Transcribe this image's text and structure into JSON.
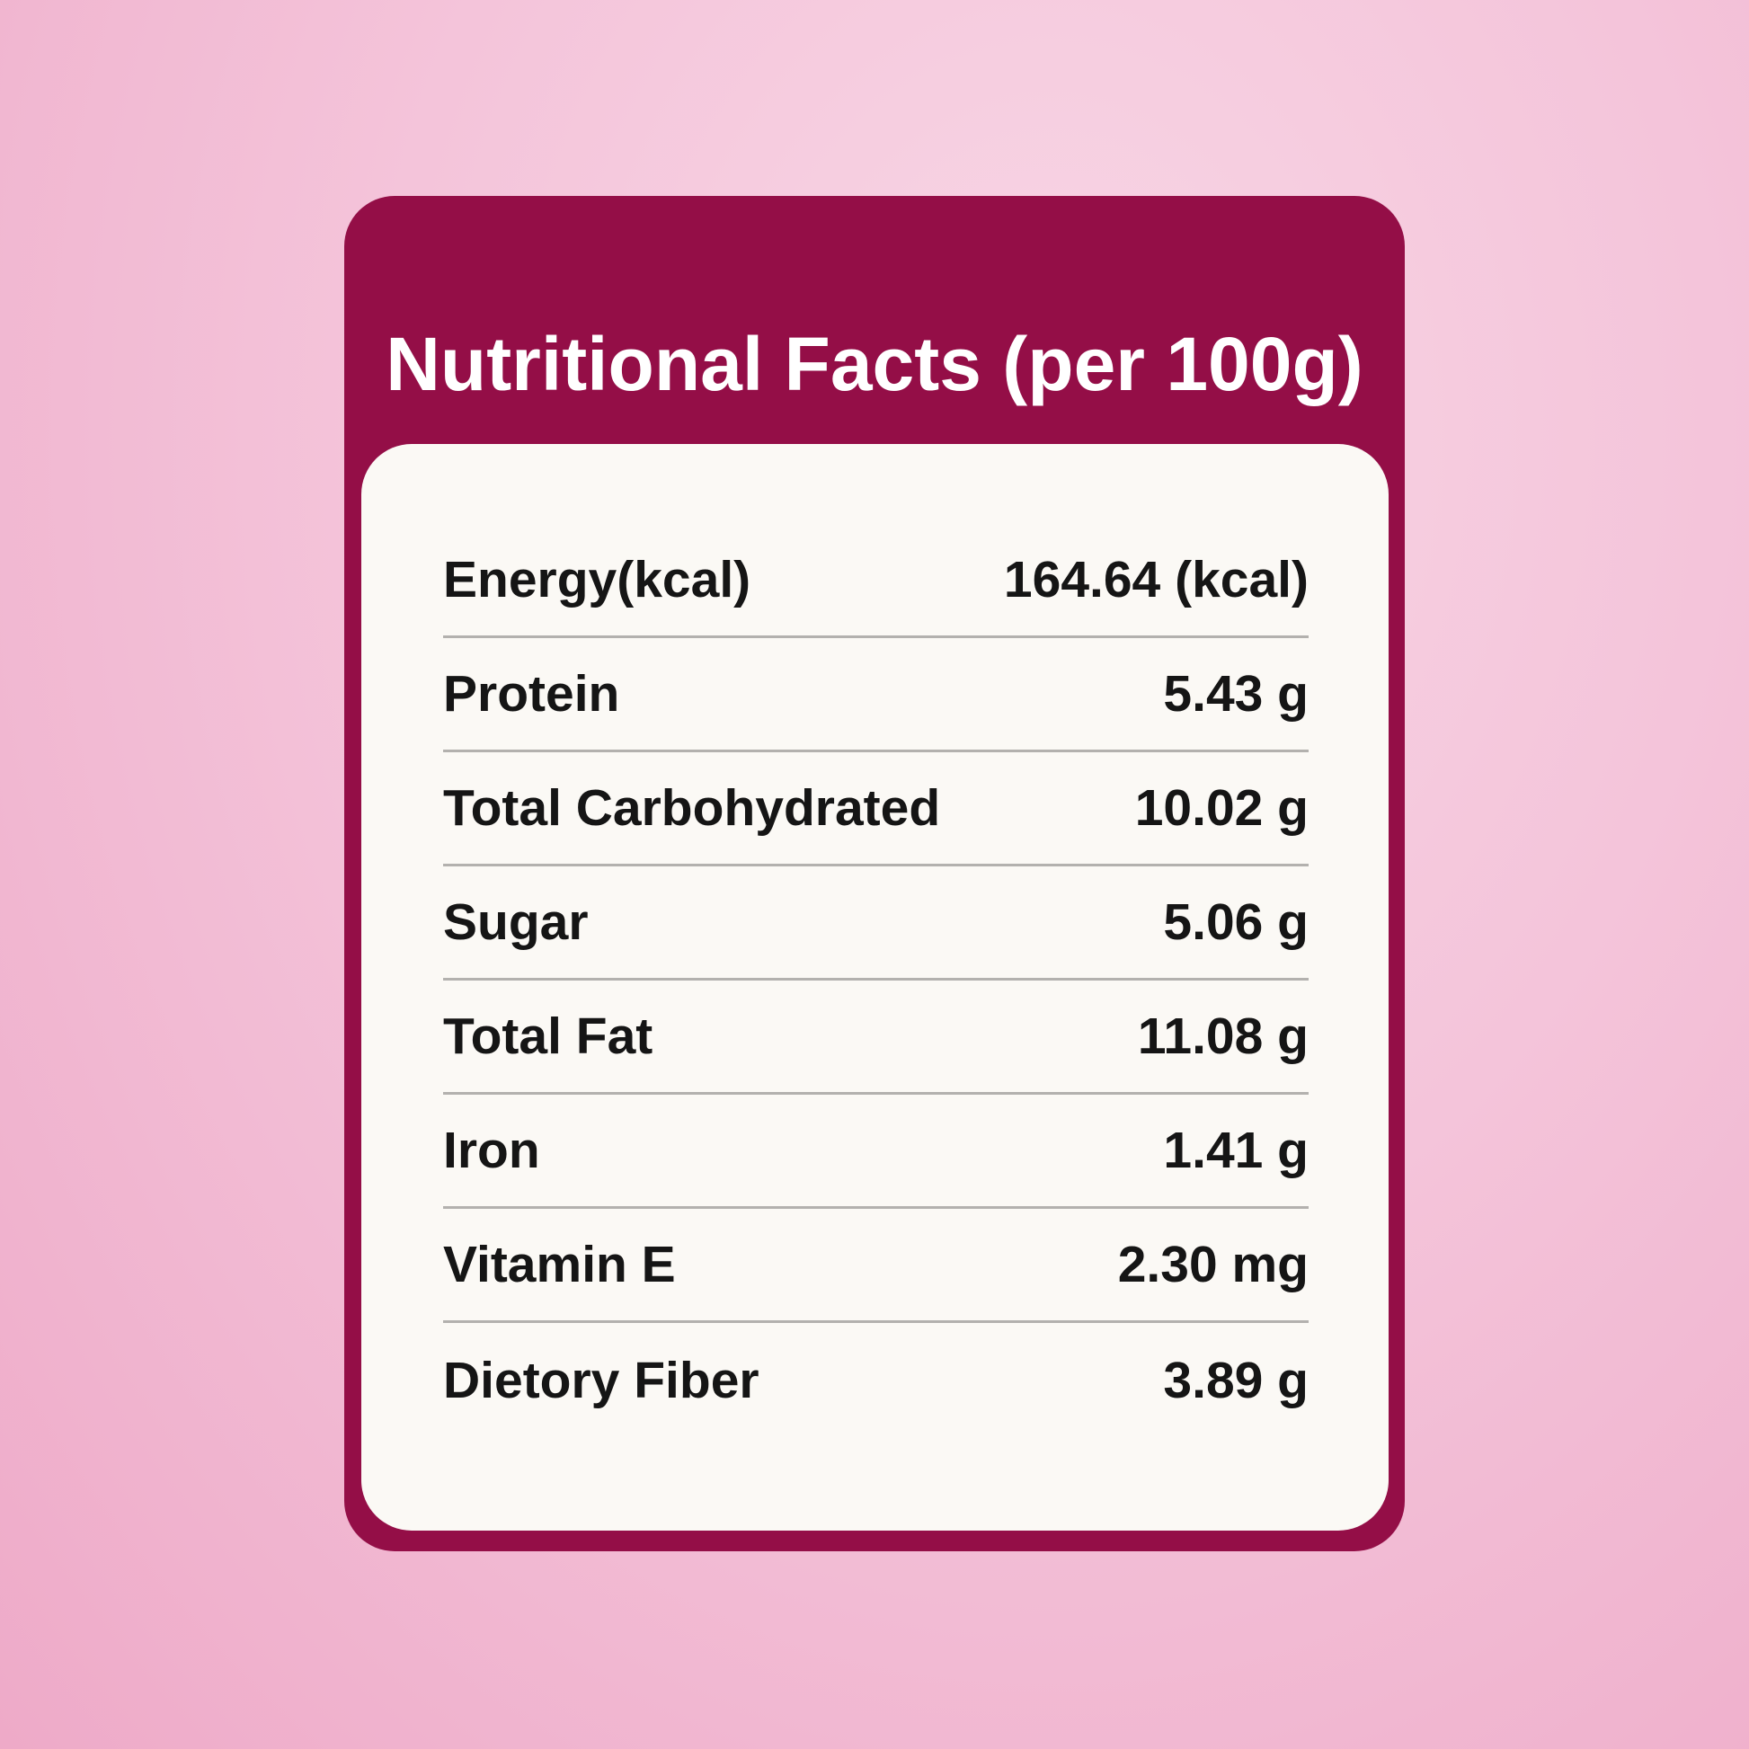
{
  "title": "Nutritional Facts (per 100g)",
  "table": {
    "rows": [
      [
        "Energy(kcal)",
        "164.64 (kcal)"
      ],
      [
        "Protein",
        "5.43 g"
      ],
      [
        "Total Carbohydrated",
        "10.02 g"
      ],
      [
        "Sugar",
        "5.06 g"
      ],
      [
        "Total Fat",
        "11.08 g"
      ],
      [
        "Iron",
        "1.41 g"
      ],
      [
        "Vitamin E",
        "2.30 mg"
      ],
      [
        "Dietory Fiber",
        "3.89 g"
      ]
    ]
  }
}
